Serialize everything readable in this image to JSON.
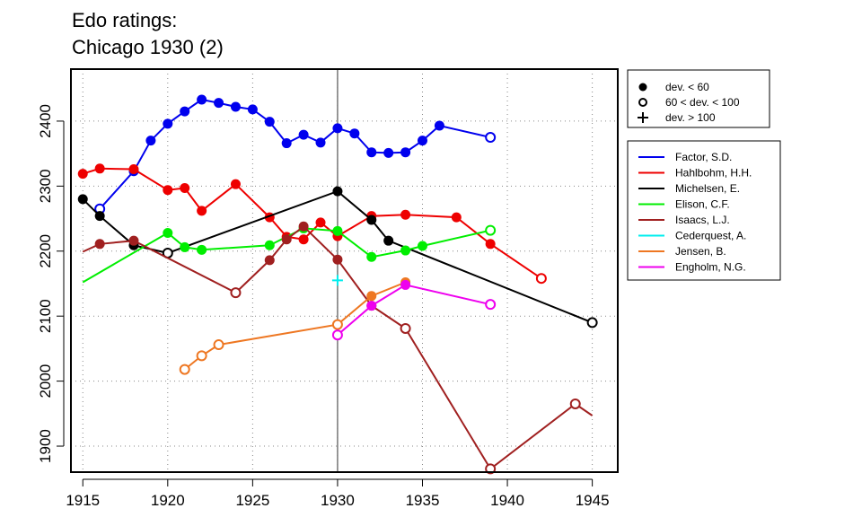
{
  "chart_data": {
    "type": "line",
    "title": "Edo ratings:",
    "subtitle": "Chicago 1930 (2)",
    "xlabel": "",
    "ylabel": "",
    "xlim": [
      1914.3,
      1946.5
    ],
    "ylim": [
      1860,
      2480
    ],
    "x_ticks": [
      1915,
      1920,
      1925,
      1930,
      1935,
      1940,
      1945
    ],
    "y_ticks": [
      1900,
      2000,
      2100,
      2200,
      2300,
      2400
    ],
    "grid": true,
    "vertical_marker": 1930,
    "marker_legend": [
      {
        "symbol": "filled-circle",
        "label": "dev. < 60"
      },
      {
        "symbol": "open-circle",
        "label": "60 < dev. < 100"
      },
      {
        "symbol": "plus",
        "label": "dev. > 100"
      }
    ],
    "series": [
      {
        "name": "Factor, S.D.",
        "color": "#0000ee",
        "points": [
          {
            "x": 1916,
            "y": 2265,
            "m": "o"
          },
          {
            "x": 1918,
            "y": 2323,
            "m": "f"
          },
          {
            "x": 1919,
            "y": 2370,
            "m": "f"
          },
          {
            "x": 1920,
            "y": 2396,
            "m": "f"
          },
          {
            "x": 1921,
            "y": 2415,
            "m": "f"
          },
          {
            "x": 1922,
            "y": 2433,
            "m": "f"
          },
          {
            "x": 1923,
            "y": 2428,
            "m": "f"
          },
          {
            "x": 1924,
            "y": 2422,
            "m": "f"
          },
          {
            "x": 1925,
            "y": 2418,
            "m": "f"
          },
          {
            "x": 1926,
            "y": 2399,
            "m": "f"
          },
          {
            "x": 1927,
            "y": 2366,
            "m": "f"
          },
          {
            "x": 1928,
            "y": 2379,
            "m": "f"
          },
          {
            "x": 1929,
            "y": 2367,
            "m": "f"
          },
          {
            "x": 1930,
            "y": 2389,
            "m": "f"
          },
          {
            "x": 1931,
            "y": 2381,
            "m": "f"
          },
          {
            "x": 1932,
            "y": 2352,
            "m": "f"
          },
          {
            "x": 1933,
            "y": 2351,
            "m": "f"
          },
          {
            "x": 1934,
            "y": 2352,
            "m": "f"
          },
          {
            "x": 1935,
            "y": 2370,
            "m": "f"
          },
          {
            "x": 1936,
            "y": 2393,
            "m": "f"
          },
          {
            "x": 1939,
            "y": 2375,
            "m": "o"
          }
        ]
      },
      {
        "name": "Hahlbohm, H.H.",
        "color": "#ee0000",
        "points": [
          {
            "x": 1915,
            "y": 2319,
            "m": "f"
          },
          {
            "x": 1916,
            "y": 2327,
            "m": "f"
          },
          {
            "x": 1918,
            "y": 2326,
            "m": "f"
          },
          {
            "x": 1920,
            "y": 2294,
            "m": "f"
          },
          {
            "x": 1921,
            "y": 2297,
            "m": "f"
          },
          {
            "x": 1922,
            "y": 2262,
            "m": "f"
          },
          {
            "x": 1924,
            "y": 2303,
            "m": "f"
          },
          {
            "x": 1926,
            "y": 2252,
            "m": "f"
          },
          {
            "x": 1927,
            "y": 2222,
            "m": "f"
          },
          {
            "x": 1928,
            "y": 2218,
            "m": "f"
          },
          {
            "x": 1929,
            "y": 2244,
            "m": "f"
          },
          {
            "x": 1930,
            "y": 2223,
            "m": "f"
          },
          {
            "x": 1932,
            "y": 2254,
            "m": "f"
          },
          {
            "x": 1934,
            "y": 2256,
            "m": "f"
          },
          {
            "x": 1937,
            "y": 2252,
            "m": "f"
          },
          {
            "x": 1939,
            "y": 2211,
            "m": "f"
          },
          {
            "x": 1942,
            "y": 2158,
            "m": "o"
          }
        ]
      },
      {
        "name": "Michelsen, E.",
        "color": "#000000",
        "points": [
          {
            "x": 1915,
            "y": 2280,
            "m": "f"
          },
          {
            "x": 1916,
            "y": 2254,
            "m": "f"
          },
          {
            "x": 1918,
            "y": 2209,
            "m": "f"
          },
          {
            "x": 1920,
            "y": 2197,
            "m": "o"
          },
          {
            "x": 1930,
            "y": 2292,
            "m": "f"
          },
          {
            "x": 1932,
            "y": 2248,
            "m": "f"
          },
          {
            "x": 1933,
            "y": 2216,
            "m": "f"
          },
          {
            "x": 1945,
            "y": 2090,
            "m": "o"
          }
        ]
      },
      {
        "name": "Elison, C.F.",
        "color": "#00ee00",
        "points": [
          {
            "x": 1915,
            "y": 2152,
            "m": "n"
          },
          {
            "x": 1920,
            "y": 2228,
            "m": "f"
          },
          {
            "x": 1921,
            "y": 2206,
            "m": "f"
          },
          {
            "x": 1922,
            "y": 2202,
            "m": "f"
          },
          {
            "x": 1926,
            "y": 2209,
            "m": "f"
          },
          {
            "x": 1928,
            "y": 2235,
            "m": "f"
          },
          {
            "x": 1930,
            "y": 2231,
            "m": "f"
          },
          {
            "x": 1932,
            "y": 2191,
            "m": "f"
          },
          {
            "x": 1934,
            "y": 2201,
            "m": "f"
          },
          {
            "x": 1935,
            "y": 2208,
            "m": "f"
          },
          {
            "x": 1939,
            "y": 2232,
            "m": "o"
          }
        ]
      },
      {
        "name": "Isaacs, L.J.",
        "color": "#a02020",
        "points": [
          {
            "x": 1915,
            "y": 2199,
            "m": "n"
          },
          {
            "x": 1916,
            "y": 2211,
            "m": "f"
          },
          {
            "x": 1918,
            "y": 2216,
            "m": "f"
          },
          {
            "x": 1924,
            "y": 2136,
            "m": "o"
          },
          {
            "x": 1926,
            "y": 2186,
            "m": "f"
          },
          {
            "x": 1927,
            "y": 2218,
            "m": "f"
          },
          {
            "x": 1928,
            "y": 2238,
            "m": "f"
          },
          {
            "x": 1930,
            "y": 2187,
            "m": "f"
          },
          {
            "x": 1932,
            "y": 2116,
            "m": "f"
          },
          {
            "x": 1934,
            "y": 2081,
            "m": "o"
          },
          {
            "x": 1939,
            "y": 1865,
            "m": "o"
          },
          {
            "x": 1944,
            "y": 1965,
            "m": "o"
          },
          {
            "x": 1945,
            "y": 1947,
            "m": "n"
          }
        ]
      },
      {
        "name": "Cederquest, A.",
        "color": "#00eeee",
        "points": [
          {
            "x": 1930,
            "y": 2155,
            "m": "p"
          }
        ]
      },
      {
        "name": "Jensen, B.",
        "color": "#ee7722",
        "points": [
          {
            "x": 1921,
            "y": 2018,
            "m": "o"
          },
          {
            "x": 1922,
            "y": 2039,
            "m": "o"
          },
          {
            "x": 1923,
            "y": 2056,
            "m": "o"
          },
          {
            "x": 1930,
            "y": 2087,
            "m": "o"
          },
          {
            "x": 1932,
            "y": 2131,
            "m": "f"
          },
          {
            "x": 1934,
            "y": 2152,
            "m": "f"
          }
        ]
      },
      {
        "name": "Engholm, N.G.",
        "color": "#ee00ee",
        "points": [
          {
            "x": 1930,
            "y": 2071,
            "m": "o"
          },
          {
            "x": 1932,
            "y": 2116,
            "m": "f"
          },
          {
            "x": 1934,
            "y": 2148,
            "m": "f"
          },
          {
            "x": 1939,
            "y": 2118,
            "m": "o"
          }
        ]
      }
    ]
  }
}
